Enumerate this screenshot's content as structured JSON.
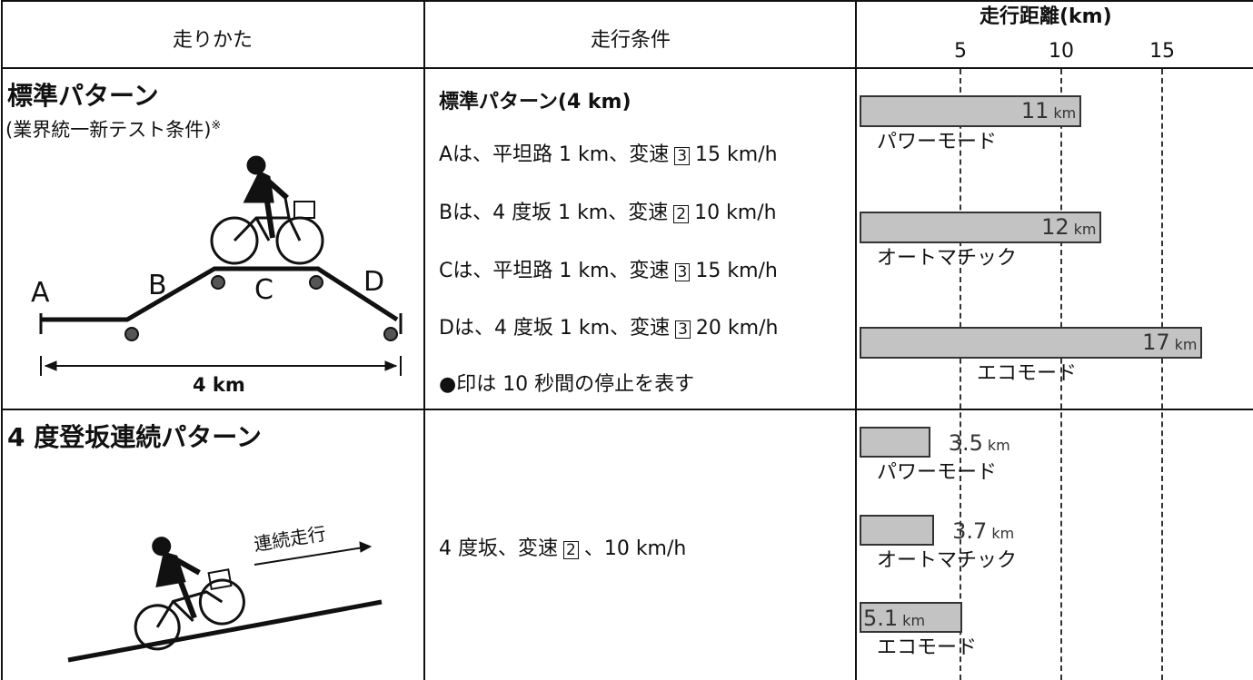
{
  "header": {
    "method": "走りかた",
    "condition": "走行条件",
    "distance": "走行距離(km)"
  },
  "axis": {
    "xlim": [
      0,
      19.5
    ],
    "xticks": [
      5,
      10,
      15
    ]
  },
  "rows": [
    {
      "title": "標準パターン",
      "subtitle": "(業界統一新テスト条件)",
      "note": "※",
      "diagram": {
        "points": [
          "A",
          "B",
          "C",
          "D"
        ],
        "length": "4 km"
      },
      "condition_title": "標準パターン(4 km)",
      "conditions": [
        {
          "pre": "Aは、平坦路 1 km、変速",
          "gear": "3",
          "post": "15 km/h"
        },
        {
          "pre": "Bは、4 度坂 1 km、変速",
          "gear": "2",
          "post": "10 km/h"
        },
        {
          "pre": "Cは、平坦路 1 km、変速",
          "gear": "3",
          "post": "15 km/h"
        },
        {
          "pre": "Dは、4 度坂 1 km、変速",
          "gear": "3",
          "post": "20 km/h"
        }
      ],
      "footnote": "●印は 10 秒間の停止を表す",
      "bars": [
        {
          "name": "パワーモード",
          "value": 11,
          "unit": "km"
        },
        {
          "name": "オートマチック",
          "value": 12,
          "unit": "km"
        },
        {
          "name": "エコモード",
          "value": 17,
          "unit": "km"
        }
      ]
    },
    {
      "title": "4 度登坂連続パターン",
      "annotation": "連続走行",
      "conditions": [
        {
          "pre": "4 度坂、変速",
          "gear": "2",
          "post": "、10 km/h"
        }
      ],
      "bars": [
        {
          "name": "パワーモード",
          "value": 3.5,
          "unit": "km"
        },
        {
          "name": "オートマチック",
          "value": 3.7,
          "unit": "km"
        },
        {
          "name": "エコモード",
          "value": 5.1,
          "unit": "km"
        }
      ]
    }
  ]
}
